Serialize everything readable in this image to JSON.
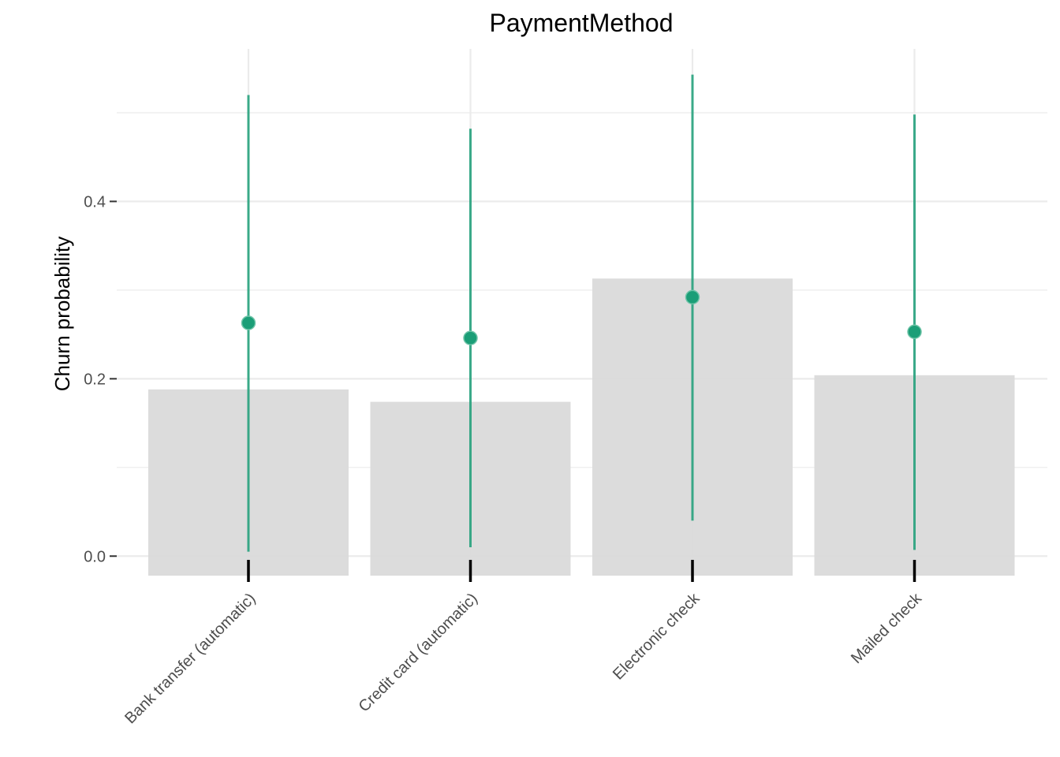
{
  "chart_data": {
    "type": "bar",
    "title": "PaymentMethod",
    "xlabel": "",
    "ylabel": "Churn probability",
    "categories": [
      "Bank transfer (automatic)",
      "Credit card (automatic)",
      "Electronic check",
      "Mailed check"
    ],
    "bar_values": [
      0.188,
      0.174,
      0.313,
      0.204
    ],
    "bar_baseline": -0.022,
    "point_series": {
      "estimate": [
        0.263,
        0.246,
        0.292,
        0.253
      ],
      "lower": [
        0.005,
        0.01,
        0.04,
        0.007
      ],
      "upper": [
        0.52,
        0.482,
        0.543,
        0.498
      ]
    },
    "yticks": [
      0.0,
      0.2,
      0.4
    ],
    "ytick_labels": [
      "0.0",
      "0.2",
      "0.4"
    ],
    "ylim": [
      -0.022,
      0.572
    ],
    "grid": true,
    "colors": {
      "bar": "#d9d9d9",
      "point": "#1b9e77",
      "errorbar": "#1b9e77",
      "grid": "#ebebeb",
      "axis_text": "#4d4d4d",
      "tick_mark": "#000000"
    }
  }
}
